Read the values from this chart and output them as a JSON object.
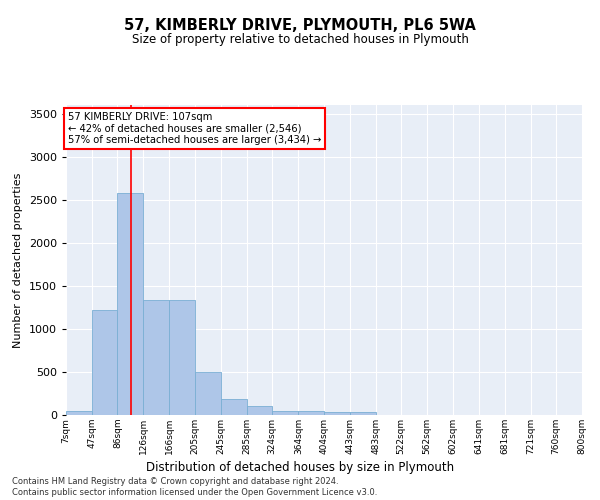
{
  "title": "57, KIMBERLY DRIVE, PLYMOUTH, PL6 5WA",
  "subtitle": "Size of property relative to detached houses in Plymouth",
  "xlabel": "Distribution of detached houses by size in Plymouth",
  "ylabel": "Number of detached properties",
  "bar_color": "#aec6e8",
  "bar_edge_color": "#7aafd4",
  "background_color": "#e8eef7",
  "grid_color": "#ffffff",
  "red_line_x": 107,
  "annotation_line1": "57 KIMBERLY DRIVE: 107sqm",
  "annotation_line2": "← 42% of detached houses are smaller (2,546)",
  "annotation_line3": "57% of semi-detached houses are larger (3,434) →",
  "footer1": "Contains HM Land Registry data © Crown copyright and database right 2024.",
  "footer2": "Contains public sector information licensed under the Open Government Licence v3.0.",
  "bin_edges": [
    7,
    47,
    86,
    126,
    166,
    205,
    245,
    285,
    324,
    364,
    404,
    443,
    483,
    522,
    562,
    602,
    641,
    681,
    721,
    760,
    800
  ],
  "bar_heights": [
    50,
    1220,
    2580,
    1340,
    1340,
    500,
    190,
    110,
    50,
    50,
    40,
    30,
    0,
    0,
    0,
    0,
    0,
    0,
    0,
    0
  ],
  "ylim": [
    0,
    3600
  ],
  "yticks": [
    0,
    500,
    1000,
    1500,
    2000,
    2500,
    3000,
    3500
  ],
  "tick_labels": [
    "7sqm",
    "47sqm",
    "86sqm",
    "126sqm",
    "166sqm",
    "205sqm",
    "245sqm",
    "285sqm",
    "324sqm",
    "364sqm",
    "404sqm",
    "443sqm",
    "483sqm",
    "522sqm",
    "562sqm",
    "602sqm",
    "641sqm",
    "681sqm",
    "721sqm",
    "760sqm",
    "800sqm"
  ]
}
